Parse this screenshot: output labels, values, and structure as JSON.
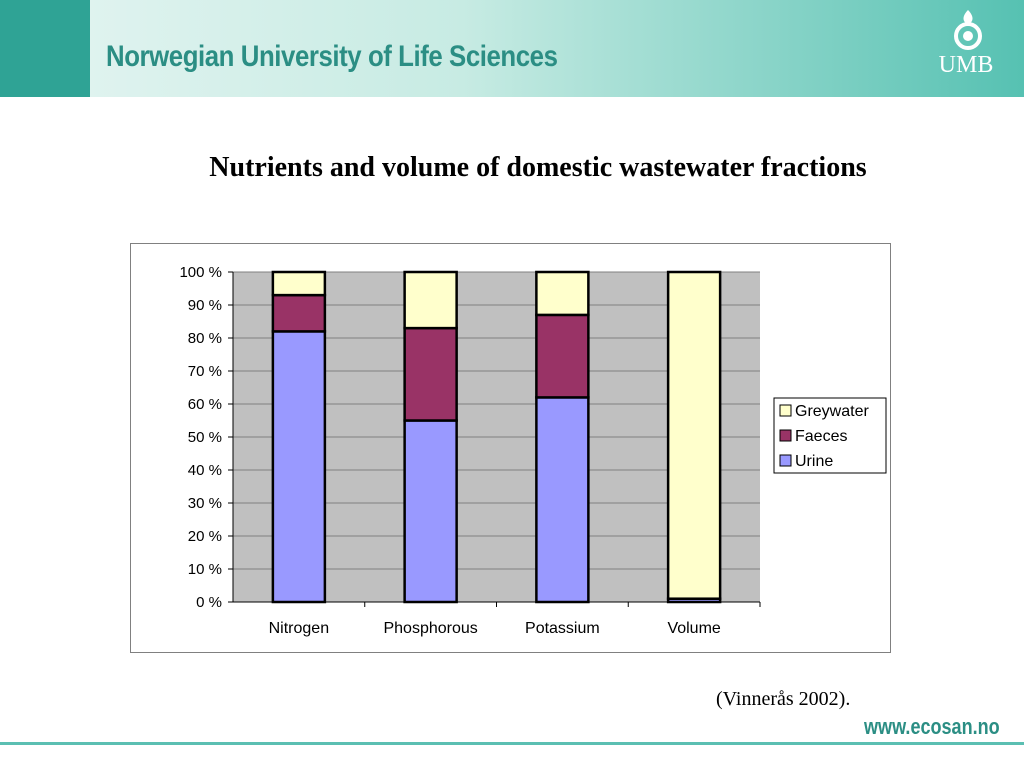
{
  "header": {
    "university_name": "Norwegian University of Life Sciences",
    "logo_text": "UMB"
  },
  "slide": {
    "title": "Nutrients and volume of domestic wastewater fractions",
    "citation": "(Vinnerås 2002).",
    "footer_url": "www.ecosan.no"
  },
  "chart_data": {
    "type": "bar",
    "stacked": true,
    "percent_stacked": true,
    "categories": [
      "Nitrogen",
      "Phosphorous",
      "Potassium",
      "Volume"
    ],
    "series": [
      {
        "name": "Urine",
        "color": "#9999ff",
        "values": [
          82,
          55,
          62,
          1
        ]
      },
      {
        "name": "Faeces",
        "color": "#993366",
        "values": [
          11,
          28,
          25,
          0
        ]
      },
      {
        "name": "Greywater",
        "color": "#ffffcc",
        "values": [
          7,
          17,
          13,
          99
        ]
      }
    ],
    "ylim": [
      0,
      100
    ],
    "yticks": [
      "0 %",
      "10 %",
      "20 %",
      "30 %",
      "40 %",
      "50 %",
      "60 %",
      "70 %",
      "80 %",
      "90 %",
      "100 %"
    ],
    "legend_entries": [
      "Greywater",
      "Faeces",
      "Urine"
    ],
    "legend_position": "right",
    "grid": true,
    "plot_background": "#c0c0c0"
  }
}
